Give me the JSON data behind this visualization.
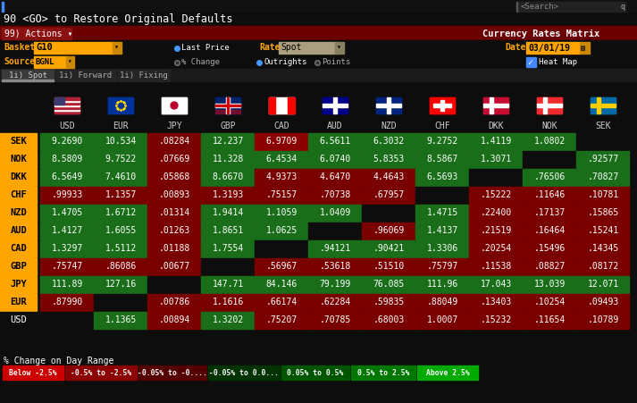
{
  "title_bar": "90 <GO> to Restore Original Defaults",
  "top_bar_text": "99) Actions ▾",
  "top_bar_right": "Currency Rates Matrix",
  "basket_label": "Basket",
  "basket_value": "G10",
  "source_label": "Source",
  "source_value": "BGNL",
  "rate_label": "Rate",
  "rate_value": "Spot",
  "date_label": "Date",
  "date_value": "03/01/19",
  "tabs": [
    "1i) Spot",
    "1i) Forward",
    "1i) Fixing"
  ],
  "col_headers": [
    "USD",
    "EUR",
    "JPY",
    "GBP",
    "CAD",
    "AUD",
    "NZD",
    "CHF",
    "DKK",
    "NOK",
    "SEK"
  ],
  "row_headers": [
    "SEK",
    "NOK",
    "DKK",
    "CHF",
    "NZD",
    "AUD",
    "CAD",
    "GBP",
    "JPY",
    "EUR",
    "USD"
  ],
  "row_has_orange": [
    true,
    true,
    true,
    true,
    true,
    true,
    true,
    true,
    true,
    true,
    false
  ],
  "data": [
    [
      "9.2690",
      "10.534",
      ".08284",
      "12.237",
      "6.9709",
      "6.5611",
      "6.3032",
      "9.2752",
      "1.4119",
      "1.0802",
      ""
    ],
    [
      "8.5809",
      "9.7522",
      ".07669",
      "11.328",
      "6.4534",
      "6.0740",
      "5.8353",
      "8.5867",
      "1.3071",
      "",
      ".92577"
    ],
    [
      "6.5649",
      "7.4610",
      ".05868",
      "8.6670",
      "4.9373",
      "4.6470",
      "4.4643",
      "6.5693",
      "",
      ".76506",
      ".70827"
    ],
    [
      ".99933",
      "1.1357",
      ".00893",
      "1.3193",
      ".75157",
      ".70738",
      ".67957",
      "",
      ".15222",
      ".11646",
      ".10781"
    ],
    [
      "1.4705",
      "1.6712",
      ".01314",
      "1.9414",
      "1.1059",
      "1.0409",
      "",
      "1.4715",
      ".22400",
      ".17137",
      ".15865"
    ],
    [
      "1.4127",
      "1.6055",
      ".01263",
      "1.8651",
      "1.0625",
      "",
      ".96069",
      "1.4137",
      ".21519",
      ".16464",
      ".15241"
    ],
    [
      "1.3297",
      "1.5112",
      ".01188",
      "1.7554",
      "",
      ".94121",
      ".90421",
      "1.3306",
      ".20254",
      ".15496",
      ".14345"
    ],
    [
      ".75747",
      ".86086",
      ".00677",
      "",
      ".56967",
      ".53618",
      ".51510",
      ".75797",
      ".11538",
      ".08827",
      ".08172"
    ],
    [
      "111.89",
      "127.16",
      "",
      "147.71",
      "84.146",
      "79.199",
      "76.085",
      "111.96",
      "17.043",
      "13.039",
      "12.071"
    ],
    [
      ".87990",
      "",
      ".00786",
      "1.1616",
      ".66174",
      ".62284",
      ".59835",
      ".88049",
      ".13403",
      ".10254",
      ".09493"
    ],
    [
      "",
      "1.1365",
      ".00894",
      "1.3202",
      ".75207",
      ".70785",
      ".68003",
      "1.0007",
      ".15232",
      ".11654",
      ".10789"
    ]
  ],
  "cell_colors": [
    [
      "#1a6e1a",
      "#1a6e1a",
      "#7a0000",
      "#1a6e1a",
      "#8B0000",
      "#1a6e1a",
      "#1a6e1a",
      "#1a6e1a",
      "#1a6e1a",
      "#1a6e1a",
      "#0d0d0d"
    ],
    [
      "#1a6e1a",
      "#1a6e1a",
      "#7a0000",
      "#1a6e1a",
      "#1a6e1a",
      "#1a6e1a",
      "#1a6e1a",
      "#1a6e1a",
      "#1a6e1a",
      "#0d0d0d",
      "#1a6e1a"
    ],
    [
      "#1a6e1a",
      "#1a6e1a",
      "#7a0000",
      "#1a6e1a",
      "#7a0000",
      "#7a0000",
      "#7a0000",
      "#1a6e1a",
      "#0d0d0d",
      "#1a6e1a",
      "#1a6e1a"
    ],
    [
      "#7a0000",
      "#7a0000",
      "#7a0000",
      "#7a0000",
      "#7a0000",
      "#7a0000",
      "#7a0000",
      "#0d0d0d",
      "#7a0000",
      "#7a0000",
      "#7a0000"
    ],
    [
      "#1a6e1a",
      "#1a6e1a",
      "#7a0000",
      "#1a6e1a",
      "#1a6e1a",
      "#1a6e1a",
      "#0d0d0d",
      "#1a6e1a",
      "#7a0000",
      "#7a0000",
      "#7a0000"
    ],
    [
      "#1a6e1a",
      "#1a6e1a",
      "#7a0000",
      "#1a6e1a",
      "#1a6e1a",
      "#0d0d0d",
      "#7a0000",
      "#1a6e1a",
      "#7a0000",
      "#7a0000",
      "#7a0000"
    ],
    [
      "#1a6e1a",
      "#1a6e1a",
      "#7a0000",
      "#1a6e1a",
      "#0d0d0d",
      "#1a6e1a",
      "#1a6e1a",
      "#1a6e1a",
      "#7a0000",
      "#7a0000",
      "#7a0000"
    ],
    [
      "#7a0000",
      "#7a0000",
      "#7a0000",
      "#0d0d0d",
      "#7a0000",
      "#7a0000",
      "#7a0000",
      "#7a0000",
      "#7a0000",
      "#7a0000",
      "#7a0000"
    ],
    [
      "#1a6e1a",
      "#1a6e1a",
      "#0d0d0d",
      "#1a6e1a",
      "#1a6e1a",
      "#1a6e1a",
      "#1a6e1a",
      "#1a6e1a",
      "#1a6e1a",
      "#1a6e1a",
      "#1a6e1a"
    ],
    [
      "#7a0000",
      "#0d0d0d",
      "#7a0000",
      "#7a0000",
      "#7a0000",
      "#7a0000",
      "#7a0000",
      "#7a0000",
      "#7a0000",
      "#7a0000",
      "#7a0000"
    ],
    [
      "#0d0d0d",
      "#1a6e1a",
      "#7a0000",
      "#1a6e1a",
      "#7a0000",
      "#7a0000",
      "#7a0000",
      "#7a0000",
      "#7a0000",
      "#7a0000",
      "#7a0000"
    ]
  ],
  "legend_labels": [
    "Below -2.5%",
    "-0.5% to -2.5%",
    "-0.05% to -0....",
    "-0.05% to 0.0...",
    "0.05% to 0.5%",
    "0.5% to 2.5%",
    "Above 2.5%"
  ],
  "legend_colors": [
    "#cc0000",
    "#8B0000",
    "#550000",
    "#003300",
    "#005500",
    "#007700",
    "#00aa00"
  ],
  "bg_color": "#0d0d0d",
  "top_bar_color": "#7a0000",
  "actions_btn_color": "#8B1010"
}
